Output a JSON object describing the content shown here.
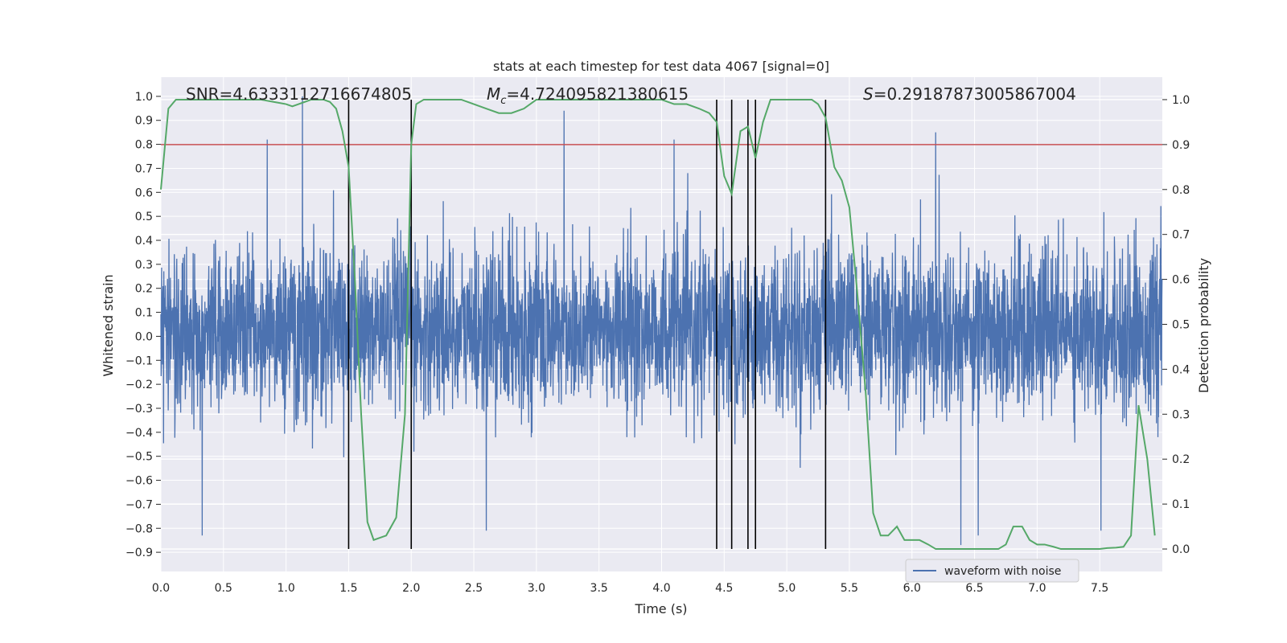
{
  "chart_data": {
    "type": "line",
    "title": "stats at each timestep for test data 4067 [signal=0]",
    "xlabel": "Time (s)",
    "ylabel_left": "Whitened strain",
    "ylabel_right": "Detection probability",
    "xlim": [
      0,
      8
    ],
    "ylim_left": [
      -0.98,
      1.08
    ],
    "ylim_right": [
      -0.05,
      1.05
    ],
    "x_ticks": [
      "0.0",
      "0.5",
      "1.0",
      "1.5",
      "2.0",
      "2.5",
      "3.0",
      "3.5",
      "4.0",
      "4.5",
      "5.0",
      "5.5",
      "6.0",
      "6.5",
      "7.0",
      "7.5"
    ],
    "y_left_ticks": [
      "-0.9",
      "-0.8",
      "-0.7",
      "-0.6",
      "-0.5",
      "-0.4",
      "-0.3",
      "-0.2",
      "-0.1",
      "0.0",
      "0.1",
      "0.2",
      "0.3",
      "0.4",
      "0.5",
      "0.6",
      "0.7",
      "0.8",
      "0.9",
      "1.0"
    ],
    "y_right_ticks": [
      "0.0",
      "0.1",
      "0.2",
      "0.3",
      "0.4",
      "0.5",
      "0.6",
      "0.7",
      "0.8",
      "0.9",
      "1.0"
    ],
    "grid": true,
    "legend_position": "lower-right",
    "colors": {
      "waveform": "#4c72b0",
      "probability": "#55a868",
      "threshold": "#c44e52",
      "boundaries": "#000000",
      "plot_bg": "#eaeaf2",
      "grid": "#ffffff"
    },
    "annotations": {
      "snr": "SNR=4.633311271667480​5",
      "mc_symbol": "M",
      "mc_sub": "c",
      "mc_value": "=4.724095821380615",
      "s_symbol": "S",
      "s_value": "=0.29187873005867004"
    },
    "threshold_probability": 0.9,
    "vertical_lines": [
      1.5,
      2.0,
      4.44,
      4.56,
      4.69,
      4.75,
      5.31
    ],
    "series": [
      {
        "name": "waveform with noise",
        "axis": "left",
        "style": "noisy waveform, approx. band -0.4 to 0.45, peaks up to 1.0 and down to -0.87",
        "peaks": [
          [
            0.85,
            0.82
          ],
          [
            1.13,
            1.0
          ],
          [
            3.22,
            0.94
          ],
          [
            4.1,
            0.82
          ],
          [
            6.19,
            0.85
          ],
          [
            0.33,
            -0.83
          ],
          [
            2.6,
            -0.81
          ],
          [
            6.39,
            -0.87
          ],
          [
            6.53,
            -0.83
          ],
          [
            7.51,
            -0.81
          ]
        ]
      },
      {
        "name": "detection probability",
        "axis": "right",
        "x": [
          0.0,
          0.06,
          0.12,
          0.2,
          0.3,
          0.4,
          0.5,
          0.6,
          0.7,
          0.8,
          0.9,
          1.0,
          1.05,
          1.1,
          1.15,
          1.2,
          1.25,
          1.3,
          1.35,
          1.4,
          1.45,
          1.5,
          1.55,
          1.6,
          1.65,
          1.7,
          1.8,
          1.88,
          1.95,
          2.0,
          2.04,
          2.1,
          2.2,
          2.3,
          2.4,
          2.5,
          2.6,
          2.7,
          2.8,
          2.9,
          3.0,
          3.1,
          3.2,
          3.3,
          3.4,
          3.5,
          3.6,
          3.7,
          3.8,
          3.9,
          4.0,
          4.1,
          4.2,
          4.3,
          4.38,
          4.44,
          4.5,
          4.56,
          4.63,
          4.69,
          4.75,
          4.81,
          4.87,
          4.93,
          5.0,
          5.1,
          5.2,
          5.25,
          5.31,
          5.38,
          5.44,
          5.5,
          5.56,
          5.63,
          5.69,
          5.75,
          5.81,
          5.88,
          5.94,
          6.0,
          6.06,
          6.13,
          6.19,
          6.25,
          6.31,
          6.38,
          6.44,
          6.5,
          6.56,
          6.63,
          6.69,
          6.75,
          6.81,
          6.88,
          6.94,
          7.0,
          7.06,
          7.13,
          7.19,
          7.25,
          7.38,
          7.5,
          7.56,
          7.63,
          7.69,
          7.75,
          7.81,
          7.88,
          7.94
        ],
        "y": [
          0.8,
          0.98,
          1.0,
          1.0,
          1.0,
          1.0,
          1.0,
          1.0,
          1.0,
          1.0,
          0.995,
          0.99,
          0.985,
          0.99,
          0.995,
          1.0,
          1.0,
          1.0,
          0.995,
          0.98,
          0.93,
          0.85,
          0.6,
          0.3,
          0.06,
          0.02,
          0.03,
          0.07,
          0.3,
          0.9,
          0.99,
          1.0,
          1.0,
          1.0,
          1.0,
          0.99,
          0.98,
          0.97,
          0.97,
          0.98,
          1.0,
          1.0,
          1.0,
          1.0,
          1.0,
          1.0,
          1.0,
          1.0,
          1.0,
          1.0,
          1.0,
          0.99,
          0.99,
          0.98,
          0.97,
          0.95,
          0.83,
          0.79,
          0.93,
          0.94,
          0.87,
          0.95,
          1.0,
          1.0,
          1.0,
          1.0,
          1.0,
          0.99,
          0.96,
          0.85,
          0.82,
          0.76,
          0.58,
          0.35,
          0.08,
          0.03,
          0.03,
          0.05,
          0.02,
          0.02,
          0.02,
          0.01,
          0.0,
          0.0,
          0.0,
          0.0,
          0.0,
          0.0,
          0.0,
          0.0,
          0.0,
          0.01,
          0.05,
          0.05,
          0.02,
          0.01,
          0.01,
          0.005,
          0.0,
          0.0,
          0.0,
          0.0,
          0.002,
          0.003,
          0.005,
          0.03,
          0.32,
          0.2,
          0.03
        ]
      }
    ],
    "legend": [
      "waveform with noise"
    ]
  }
}
